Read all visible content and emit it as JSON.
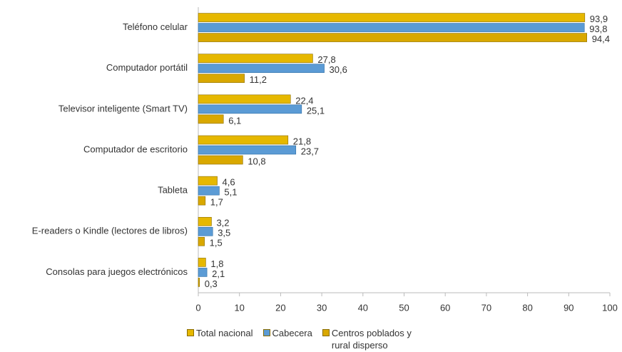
{
  "chart_data": {
    "type": "bar",
    "orientation": "horizontal",
    "categories": [
      "Teléfono celular",
      "Computador portátil",
      "Televisor inteligente (Smart TV)",
      "Computador de escritorio",
      "Tableta",
      "E-readers o Kindle (lectores de libros)",
      "Consolas para juegos electrónicos"
    ],
    "series": [
      {
        "name": "Total nacional",
        "color": "#e6b800",
        "values": [
          93.9,
          27.8,
          22.4,
          21.8,
          4.6,
          3.2,
          1.8
        ],
        "value_labels": [
          "93,9",
          "27,8",
          "22,4",
          "21,8",
          "4,6",
          "3,2",
          "1,8"
        ]
      },
      {
        "name": "Cabecera",
        "color": "#5b9bd5",
        "values": [
          93.8,
          30.6,
          25.1,
          23.7,
          5.1,
          3.5,
          2.1
        ],
        "value_labels": [
          "93,8",
          "30,6",
          "25,1",
          "23,7",
          "5,1",
          "3,5",
          "2,1"
        ]
      },
      {
        "name": "Centros poblados y rural disperso",
        "color": "#d9a800",
        "values": [
          94.4,
          11.2,
          6.1,
          10.8,
          1.7,
          1.5,
          0.3
        ],
        "value_labels": [
          "94,4",
          "11,2",
          "6,1",
          "10,8",
          "1,7",
          "1,5",
          "0,3"
        ]
      }
    ],
    "xlim": [
      0,
      100
    ],
    "xticks": [
      0,
      10,
      20,
      30,
      40,
      50,
      60,
      70,
      80,
      90,
      100
    ],
    "grid": false
  }
}
